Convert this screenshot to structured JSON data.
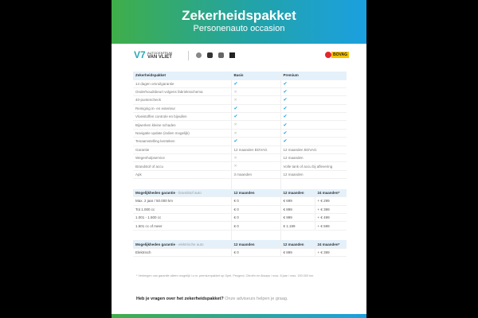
{
  "header": {
    "title": "Zekerheidspakket",
    "subtitle": "Personenauto occasion"
  },
  "logos": {
    "dealer_line1": "AUTOCENTRUM",
    "dealer_line2": "VAN VLIET",
    "bovag": "BOVAG",
    "brand_icons": [
      "opel-logo",
      "peugeot-logo",
      "citroen-logo",
      "ds-logo"
    ]
  },
  "colors": {
    "gradient_start": "#3fae49",
    "gradient_end": "#1ba0e0",
    "check": "#1ba0e0",
    "header_row": "#e4f1fb"
  },
  "package_table": {
    "headers": [
      "Zekerheidspakket",
      "Basis",
      "Premium"
    ],
    "rows": [
      [
        "14 dagen omruilgarantie",
        "check",
        "check"
      ],
      [
        "Onderhoudsbeurt volgens fabrieksschema",
        "cross",
        "check"
      ],
      [
        "40-puntencheck",
        "cross",
        "check"
      ],
      [
        "Reiniging in- en exterieur",
        "check",
        "check"
      ],
      [
        "Vloeistoffen controle en bijvullen",
        "check",
        "check"
      ],
      [
        "Bijwerken kleine schades",
        "cross",
        "check"
      ],
      [
        "Navigatie update (indien mogelijk)",
        "cross",
        "check"
      ],
      [
        "Tenaamstelling kenteken",
        "check",
        "check"
      ],
      [
        "Garantie",
        "12 maanden BOVAG",
        "12 maanden BOVAG"
      ],
      [
        "Wegenhulpservice",
        "cross",
        "12 maanden"
      ],
      [
        "Brandstof of accu",
        "cross",
        "Volle tank of accu bij aflevering"
      ],
      [
        "Apk",
        "3 maanden",
        "12 maanden"
      ]
    ]
  },
  "fuel_table": {
    "title": "Mogelijkheden garantie",
    "subtitle": "- brandstof auto",
    "headers": [
      "12 maanden",
      "12 maanden",
      "24 maanden*"
    ],
    "rows": [
      [
        "Max. 2 jaar / 50.000 km",
        "€ 0",
        "€ 699",
        "+ € 299"
      ],
      [
        "Tot 1.000 cc",
        "€ 0",
        "€ 899",
        "+ € 399"
      ],
      [
        "1.001 - 1.500 cc",
        "€ 0",
        "€ 999",
        "+ € 499"
      ],
      [
        "1.501 cc of meer",
        "€ 0",
        "€ 1.199",
        "+ € 599"
      ]
    ]
  },
  "electric_table": {
    "title": "Mogelijkheden garantie",
    "subtitle": "- elektrische auto",
    "headers": [
      "12 maanden",
      "12 maanden",
      "24 maanden*"
    ],
    "rows": [
      [
        "Elektrisch",
        "€ 0",
        "€ 899",
        "+ € 399"
      ]
    ]
  },
  "footnote": "* Verlengen van garantie alleen mogelijk i.c.m. premiumpakket op Opel, Peugeot, Citroën en Aiways / max. 8 jaar / max. 150.000 km.",
  "question": {
    "bold": "Heb je vragen over het zekerheidspakket?",
    "rest": " Onze adviseurs helpen je graag."
  }
}
